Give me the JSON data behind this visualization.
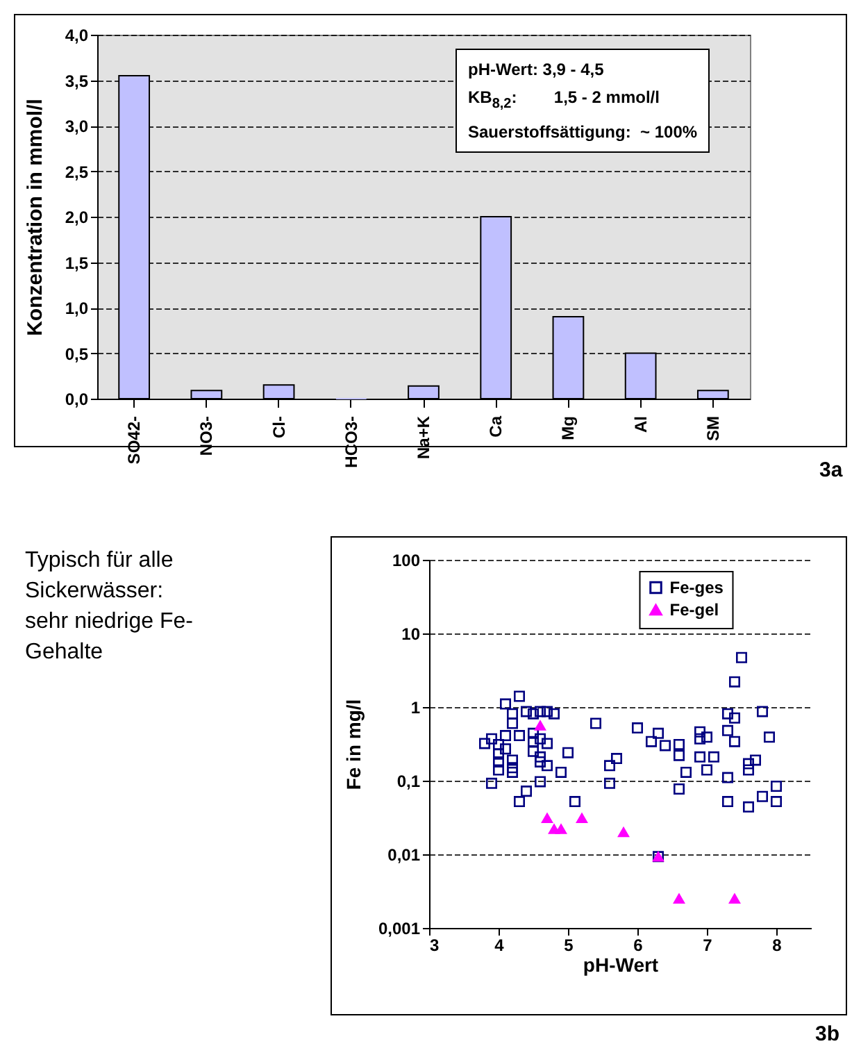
{
  "chart_data": [
    {
      "type": "bar",
      "ylabel": "Konzentration in mmol/l",
      "categories": [
        "SO42-",
        "NO3-",
        "Cl-",
        "HCO3-",
        "Na+K",
        "Ca",
        "Mg",
        "Al",
        "SM"
      ],
      "values": [
        3.55,
        0.09,
        0.15,
        0,
        0.14,
        2.0,
        0.9,
        0.5,
        0.09
      ],
      "color": "#c0c0ff",
      "ylim": [
        0,
        4
      ],
      "yticks": [
        {
          "value": 0,
          "label": "0,0"
        },
        {
          "value": 0.5,
          "label": "0,5"
        },
        {
          "value": 1,
          "label": "1,0"
        },
        {
          "value": 1.5,
          "label": "1,5"
        },
        {
          "value": 2,
          "label": "2,0"
        },
        {
          "value": 2.5,
          "label": "2,5"
        },
        {
          "value": 3,
          "label": "3,0"
        },
        {
          "value": 3.5,
          "label": "3,5"
        },
        {
          "value": 4,
          "label": "4,0"
        }
      ],
      "grid": "y",
      "annotations": [
        "pH-Wert: 3,9 - 4,5",
        "KB$_{8,2}$:        1,5 - 2 mmol/l",
        "Sauerstoffsättigung:  ~ 100%",
        "3a"
      ]
    },
    {
      "type": "scatter",
      "xlabel": "pH-Wert",
      "ylabel": "Fe in mg/l",
      "log": "y",
      "xlim": [
        3,
        8.5
      ],
      "xticks": [
        3,
        4,
        5,
        6,
        7,
        8
      ],
      "ylim": [
        0.001,
        100
      ],
      "yticks": [
        {
          "value": 0.001,
          "label": "0,001"
        },
        {
          "value": 0.01,
          "label": "0,01"
        },
        {
          "value": 0.1,
          "label": "0,1"
        },
        {
          "value": 1,
          "label": "1"
        },
        {
          "value": 10,
          "label": "10"
        },
        {
          "value": 100,
          "label": "100"
        }
      ],
      "grid": "y",
      "legend": "top right",
      "series": [
        {
          "name": "Fe-ges",
          "color": "#000080",
          "marker": "square",
          "x": [
            3.8,
            3.9,
            3.9,
            4.0,
            4.0,
            4.0,
            4.0,
            4.1,
            4.1,
            4.1,
            4.2,
            4.2,
            4.2,
            4.2,
            4.2,
            4.3,
            4.3,
            4.3,
            4.4,
            4.4,
            4.5,
            4.5,
            4.5,
            4.5,
            4.6,
            4.6,
            4.6,
            4.6,
            4.6,
            4.7,
            4.7,
            4.7,
            4.8,
            4.9,
            5.0,
            5.1,
            5.4,
            5.6,
            5.6,
            5.7,
            6.0,
            6.2,
            6.3,
            6.3,
            6.4,
            6.6,
            6.6,
            6.6,
            6.7,
            6.9,
            6.9,
            6.9,
            7.0,
            7.0,
            7.1,
            7.3,
            7.3,
            7.3,
            7.3,
            7.4,
            7.4,
            7.4,
            7.5,
            7.6,
            7.6,
            7.6,
            7.7,
            7.8,
            7.8,
            7.9,
            8.0,
            8.0
          ],
          "values": [
            0.32,
            0.37,
            0.092,
            0.31,
            0.23,
            0.18,
            0.14,
            1.1,
            0.41,
            0.27,
            0.81,
            0.6,
            0.19,
            0.15,
            0.13,
            1.4,
            0.41,
            0.052,
            0.87,
            0.072,
            0.81,
            0.44,
            0.34,
            0.25,
            0.87,
            0.37,
            0.21,
            0.18,
            0.097,
            0.87,
            0.32,
            0.16,
            0.81,
            0.13,
            0.24,
            0.052,
            0.6,
            0.16,
            0.092,
            0.2,
            0.52,
            0.34,
            0.44,
            0.0093,
            0.3,
            0.31,
            0.22,
            0.077,
            0.13,
            0.46,
            0.37,
            0.21,
            0.39,
            0.14,
            0.21,
            0.81,
            0.48,
            0.11,
            0.052,
            2.2,
            0.71,
            0.34,
            4.7,
            0.17,
            0.14,
            0.044,
            0.19,
            0.87,
            0.061,
            0.39,
            0.084,
            0.052
          ]
        },
        {
          "name": "Fe-gel",
          "color": "#ff00ff",
          "marker": "triangle",
          "x": [
            4.6,
            4.7,
            4.8,
            4.9,
            5.2,
            5.8,
            6.3,
            6.6,
            7.4
          ],
          "values": [
            0.56,
            0.031,
            0.022,
            0.022,
            0.031,
            0.02,
            0.0093,
            0.0025,
            0.0025
          ]
        }
      ],
      "annotations": [
        "Typisch für alle Sickerwässer: sehr niedrige Fe-Gehalte",
        "3b"
      ]
    }
  ]
}
